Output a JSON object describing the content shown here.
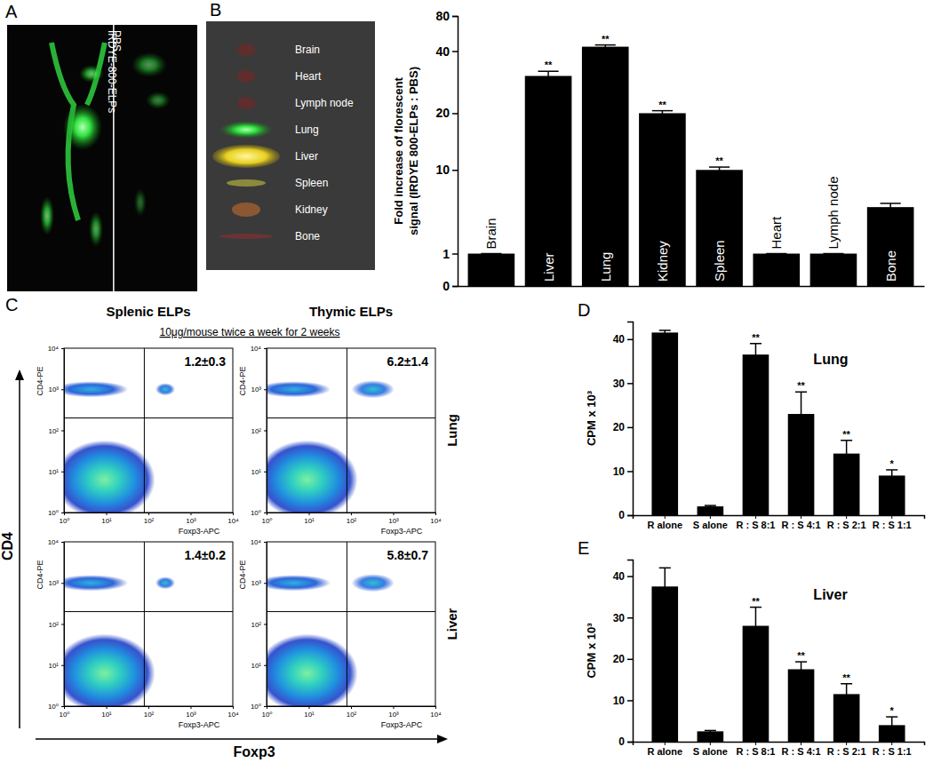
{
  "chart_data": [
    {
      "panel": "A",
      "type": "image",
      "labels": [
        "IRDYE-800-ELPs",
        "PBS"
      ]
    },
    {
      "panel": "B",
      "type": "image",
      "labels": [
        "Brain",
        "Heart",
        "Lymph node",
        "Lung",
        "Liver",
        "Spleen",
        "Kidney",
        "Bone"
      ]
    },
    {
      "type": "bar",
      "y_label": [
        "Fold increase of florescent",
        "signal (IRDYE 800-ELPs : PBS)"
      ],
      "categories": [
        "Brain",
        "Liver",
        "Lung",
        "Kidney",
        "Spleen",
        "Heart",
        "Lymph node",
        "Bone"
      ],
      "values": [
        1,
        32,
        45,
        20,
        10,
        1,
        1,
        6
      ],
      "errors": [
        0,
        1.5,
        2,
        0.8,
        0.5,
        0,
        0,
        0.4
      ],
      "significance": [
        null,
        "**",
        "**",
        "**",
        "**",
        null,
        null,
        null
      ],
      "color": "#000000",
      "ylim": [
        0,
        80
      ],
      "yticks": [
        0,
        1,
        10,
        20,
        40,
        80
      ],
      "tick_labels": "y"
    },
    {
      "panel": "C",
      "type": "flow_cytometry",
      "columns": [
        "Splenic ELPs",
        "Thymic ELPs"
      ],
      "treatment": "10μg/mouse twice a week for 2 weeks",
      "rows": [
        "Lung",
        "Liver"
      ],
      "x_label": "Foxp3",
      "y_label": "CD4",
      "plot_x_label": "Foxp3-APC",
      "plot_y_label": "CD4-PE",
      "log": true,
      "xlim": [
        1,
        10000
      ],
      "ylim": [
        1,
        10000
      ],
      "xticks": [
        {
          "value": 1,
          "label": "10⁰"
        },
        {
          "value": 10,
          "label": "10¹"
        },
        {
          "value": 100,
          "label": "10²"
        },
        {
          "value": 1000,
          "label": "10³"
        },
        {
          "value": 10000,
          "label": "10⁴"
        }
      ],
      "yticks": [
        {
          "value": 1,
          "label": "10⁰"
        },
        {
          "value": 10,
          "label": "10¹"
        },
        {
          "value": 100,
          "label": "10²"
        },
        {
          "value": 1000,
          "label": "10³"
        },
        {
          "value": 10000,
          "label": "10⁴"
        }
      ],
      "quadrant_gate": [
        80,
        200
      ],
      "quadrant_labels": [
        [
          "1.2±0.3",
          "6.2±1.4"
        ],
        [
          "1.4±0.2",
          "5.8±0.7"
        ]
      ]
    },
    {
      "panel": "D",
      "type": "bar",
      "title": "Lung",
      "y_label": "CPM x 10³",
      "categories": [
        "R alone",
        "S alone",
        "R : S 8:1",
        "R : S 4:1",
        "R : S 2:1",
        "R : S 1:1"
      ],
      "values": [
        41.5,
        2,
        36.5,
        23,
        14,
        9
      ],
      "errors": [
        0.5,
        0.2,
        2.5,
        5,
        3,
        1.3
      ],
      "significance": [
        null,
        null,
        "**",
        "**",
        "**",
        "*"
      ],
      "color": "#000000",
      "ylim": [
        0,
        44
      ],
      "yticks": [
        0,
        10,
        20,
        30,
        40
      ]
    },
    {
      "panel": "E",
      "type": "bar",
      "title": "Liver",
      "y_label": "CPM x 10³",
      "categories": [
        "R alone",
        "S alone",
        "R : S 8:1",
        "R : S 4:1",
        "R : S 2:1",
        "R : S 1:1"
      ],
      "values": [
        37.5,
        2.5,
        28,
        17.5,
        11.5,
        4
      ],
      "errors": [
        4.5,
        0.2,
        4.5,
        1.8,
        2.5,
        2
      ],
      "significance": [
        null,
        null,
        "**",
        "**",
        "**",
        "*"
      ],
      "color": "#000000",
      "ylim": [
        0,
        44
      ],
      "yticks": [
        0,
        10,
        20,
        30,
        40
      ]
    }
  ]
}
